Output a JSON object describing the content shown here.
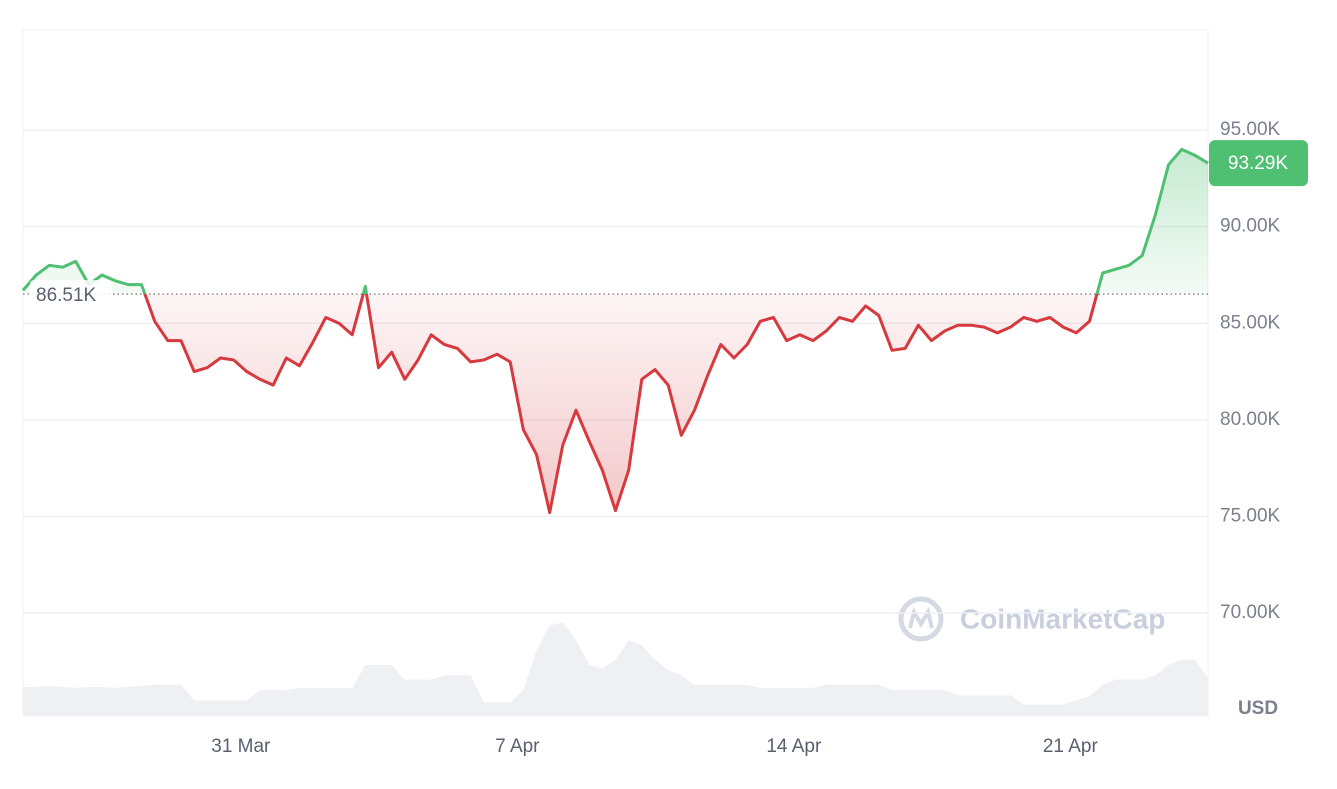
{
  "chart_data": {
    "type": "line",
    "categories": [
      null,
      null,
      null,
      null,
      null,
      null,
      null,
      null,
      null,
      null,
      null,
      null,
      null,
      null,
      null,
      null,
      null,
      "31 Mar",
      null,
      null,
      null,
      null,
      null,
      null,
      null,
      null,
      null,
      null,
      null,
      null,
      null,
      null,
      null,
      null,
      null,
      null,
      null,
      null,
      "7 Apr",
      null,
      null,
      null,
      null,
      null,
      null,
      null,
      null,
      null,
      null,
      null,
      null,
      null,
      null,
      null,
      null,
      null,
      null,
      null,
      null,
      "14 Apr",
      null,
      null,
      null,
      null,
      null,
      null,
      null,
      null,
      null,
      null,
      null,
      null,
      null,
      null,
      null,
      null,
      null,
      null,
      null,
      null,
      "21 Apr",
      null,
      null,
      null,
      null,
      null,
      null,
      null,
      null,
      null,
      null
    ],
    "values": [
      86700,
      87500,
      88000,
      87900,
      88200,
      87000,
      87500,
      87200,
      87000,
      87000,
      85100,
      84100,
      84100,
      82500,
      82700,
      83200,
      83100,
      82500,
      82100,
      81800,
      83200,
      82800,
      84000,
      85300,
      85000,
      84400,
      86900,
      82700,
      83500,
      82100,
      83100,
      84400,
      83900,
      83700,
      83000,
      83100,
      83400,
      83000,
      79500,
      78200,
      75200,
      78700,
      80500,
      78900,
      77400,
      75300,
      77400,
      82100,
      82600,
      81800,
      79200,
      80500,
      82300,
      83900,
      83200,
      83900,
      85100,
      85300,
      84100,
      84400,
      84100,
      84600,
      85300,
      85100,
      85900,
      85400,
      83600,
      83700,
      84900,
      84100,
      84600,
      84900,
      84900,
      84800,
      84500,
      84800,
      85300,
      85100,
      85300,
      84800,
      84500,
      85100,
      87600,
      87800,
      88000,
      88500,
      90600,
      93200,
      94000,
      93700,
      93290
    ],
    "volume": [
      28,
      28,
      29,
      28,
      27,
      28,
      28,
      27,
      28,
      29,
      30,
      30,
      30,
      15,
      15,
      15,
      15,
      15,
      25,
      25,
      25,
      27,
      27,
      27,
      27,
      27,
      49,
      49,
      49,
      35,
      35,
      35,
      39,
      39,
      39,
      13,
      13,
      13,
      25,
      63,
      87,
      90,
      73,
      49,
      46,
      54,
      73,
      68,
      54,
      44,
      39,
      30,
      30,
      30,
      30,
      30,
      27,
      27,
      27,
      27,
      27,
      30,
      30,
      30,
      30,
      30,
      25,
      25,
      25,
      25,
      25,
      20,
      20,
      20,
      20,
      20,
      11,
      11,
      11,
      11,
      15,
      19,
      30,
      35,
      35,
      35,
      39,
      49,
      54,
      54,
      37
    ],
    "volume_lim": [
      0,
      100
    ],
    "ylim": [
      64670,
      100180
    ],
    "yticks": [
      {
        "value": 70000,
        "label": "70.00K"
      },
      {
        "value": 75000,
        "label": "75.00K"
      },
      {
        "value": 80000,
        "label": "80.00K"
      },
      {
        "value": 85000,
        "label": "85.00K"
      },
      {
        "value": 90000,
        "label": "90.00K"
      },
      {
        "value": 95000,
        "label": "95.00K"
      }
    ],
    "baseline": {
      "value": 86510,
      "label": "86.51K"
    },
    "last_price": {
      "value": 93290,
      "label": "93.29K"
    },
    "currency": "USD",
    "watermark": "CoinMarketCap",
    "up_color": "#4fbf72",
    "down_color": "#d63a3f",
    "grid": true
  }
}
